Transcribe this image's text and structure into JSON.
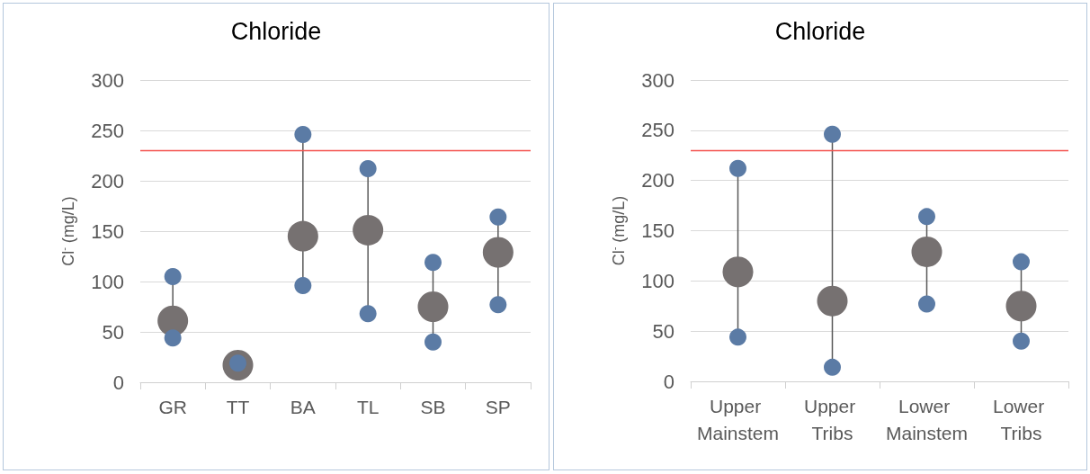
{
  "chart_data": [
    {
      "type": "scatter",
      "title": "Chloride",
      "ylabel": "Cl$^{-}$ (mg/L)",
      "categories": [
        "GR",
        "TT",
        "BA",
        "TL",
        "SB",
        "SP"
      ],
      "ylim": [
        0,
        300
      ],
      "yticks": [
        0,
        50,
        100,
        150,
        200,
        250,
        300
      ],
      "grid": "y",
      "series": [
        {
          "type": "line",
          "color": "#595959",
          "x": [
            "GR",
            "GR"
          ],
          "values": [
            44,
            105
          ]
        },
        {
          "type": "line",
          "color": "#595959",
          "x": [
            "BA",
            "BA"
          ],
          "values": [
            96,
            246
          ]
        },
        {
          "type": "line",
          "color": "#595959",
          "x": [
            "TL",
            "TL"
          ],
          "values": [
            68,
            212
          ]
        },
        {
          "type": "line",
          "color": "#595959",
          "x": [
            "SB",
            "SB"
          ],
          "values": [
            40,
            119
          ]
        },
        {
          "type": "line",
          "color": "#595959",
          "x": [
            "SP",
            "SP"
          ],
          "values": [
            77,
            164
          ]
        },
        {
          "color": "#767171",
          "marker": "circle",
          "values": [
            61,
            17,
            145,
            151,
            75,
            129
          ]
        },
        {
          "color": "#5b7ba5",
          "marker": "circle",
          "values": [
            105,
            19,
            246,
            212,
            119,
            164
          ]
        },
        {
          "color": "#5b7ba5",
          "marker": "circle",
          "values": [
            44,
            null,
            96,
            68,
            40,
            77
          ]
        }
      ],
      "ref_lines": [
        {
          "axis": "y",
          "value": 230,
          "color": "#f4524d"
        }
      ]
    },
    {
      "type": "scatter",
      "title": "Chloride",
      "ylabel": "Cl$^{-}$ (mg/L)",
      "categories": [
        "Upper Mainstem",
        "Upper Tribs",
        "Lower Mainstem",
        "Lower Tribs"
      ],
      "ylim": [
        0,
        300
      ],
      "yticks": [
        0,
        50,
        100,
        150,
        200,
        250,
        300
      ],
      "grid": "y",
      "series": [
        {
          "type": "line",
          "color": "#595959",
          "x": [
            "Upper Mainstem",
            "Upper Mainstem"
          ],
          "values": [
            44,
            212
          ]
        },
        {
          "type": "line",
          "color": "#595959",
          "x": [
            "Upper Tribs",
            "Upper Tribs"
          ],
          "values": [
            14,
            246
          ]
        },
        {
          "type": "line",
          "color": "#595959",
          "x": [
            "Lower Mainstem",
            "Lower Mainstem"
          ],
          "values": [
            77,
            164
          ]
        },
        {
          "type": "line",
          "color": "#595959",
          "x": [
            "Lower Tribs",
            "Lower Tribs"
          ],
          "values": [
            40,
            119
          ]
        },
        {
          "color": "#767171",
          "marker": "circle",
          "values": [
            109,
            80,
            129,
            75
          ]
        },
        {
          "color": "#5b7ba5",
          "marker": "circle",
          "values": [
            212,
            246,
            164,
            119
          ]
        },
        {
          "color": "#5b7ba5",
          "marker": "circle",
          "values": [
            44,
            14,
            77,
            40
          ]
        }
      ],
      "ref_lines": [
        {
          "axis": "y",
          "value": 230,
          "color": "#f4524d"
        }
      ]
    }
  ]
}
